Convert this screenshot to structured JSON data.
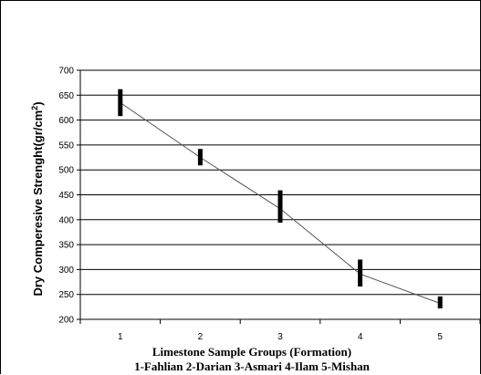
{
  "chart_data": {
    "type": "line",
    "title": "",
    "ylabel": "Dry Comperesive Strenght(gr/cm",
    "ylabel_superscript": "2",
    "ylabel_suffix": ")",
    "xlabel": "Limestone Sample Groups (Formation)",
    "xlabel_line2": "1-Fahlian  2-Darian  3-Asmari  4-Ilam  5-Mishan",
    "categories": [
      "1",
      "2",
      "3",
      "4",
      "5"
    ],
    "x": [
      1,
      2,
      3,
      4,
      5
    ],
    "y": [
      635,
      525,
      422,
      291,
      232
    ],
    "error_bars": [
      {
        "low": 608,
        "high": 662
      },
      {
        "low": 509,
        "high": 542
      },
      {
        "low": 394,
        "high": 459
      },
      {
        "low": 266,
        "high": 320
      },
      {
        "low": 222,
        "high": 246
      }
    ],
    "ylim": [
      200,
      700
    ],
    "yticks": [
      200,
      250,
      300,
      350,
      400,
      450,
      500,
      550,
      600,
      650,
      700
    ],
    "grid": true,
    "legend": "none",
    "line_color": "#555555",
    "error_bar_color": "#000000",
    "grid_color": "#000000"
  }
}
